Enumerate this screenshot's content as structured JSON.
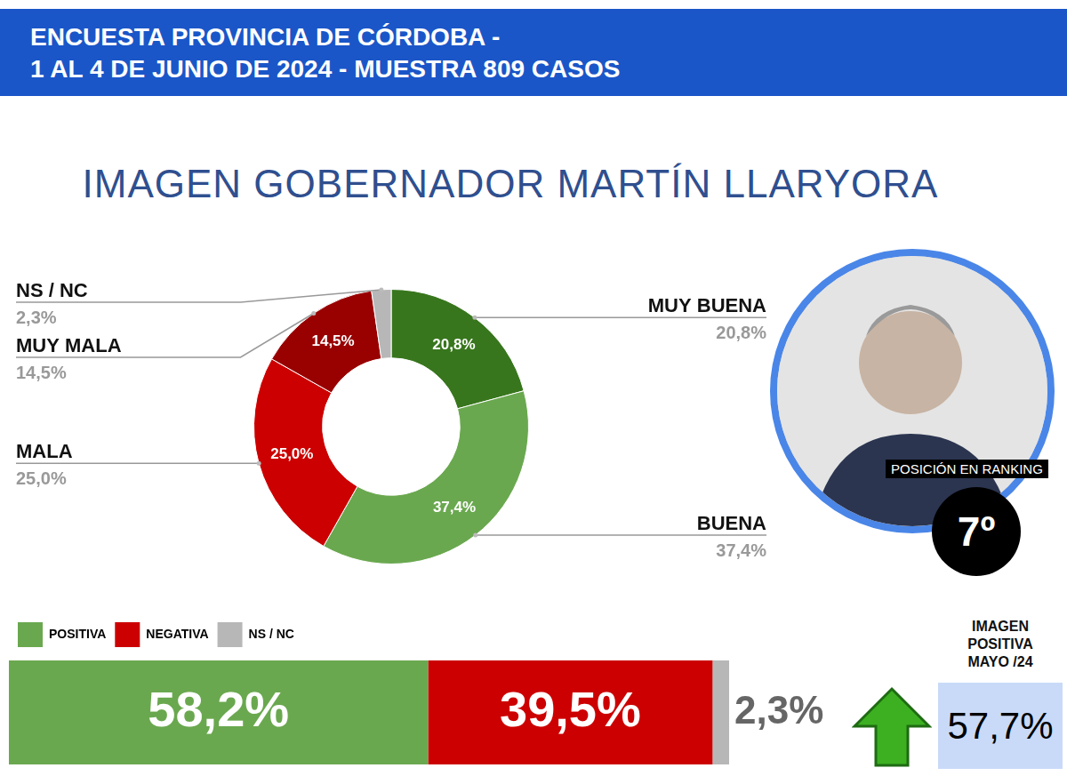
{
  "header": {
    "lines": [
      "ENCUESTA PROVINCIA DE CÓRDOBA -",
      "1 AL 4 DE JUNIO DE 2024 - MUESTRA 809 CASOS"
    ]
  },
  "chart_data": [
    {
      "type": "doughnut",
      "title": "IMAGEN GOBERNADOR  MARTÍN LLARYORA",
      "categories": [
        "MUY BUENA",
        "BUENA",
        "MALA",
        "MUY MALA",
        "NS / NC"
      ],
      "values": [
        20.8,
        37.4,
        25.0,
        14.5,
        2.3
      ],
      "value_labels": [
        "20,8%",
        "37,4%",
        "25,0%",
        "14,5%",
        "2,3%"
      ],
      "colors": [
        "#38761d",
        "#6aa84f",
        "#cc0000",
        "#990000",
        "#b7b7b7"
      ],
      "data_labels": true
    },
    {
      "type": "bar",
      "orientation": "horizontal",
      "stacked": true,
      "legend": "top",
      "categories": [
        null
      ],
      "xlim": [
        0,
        100
      ],
      "tick_labels": false,
      "grid": false,
      "data_labels": true,
      "series": [
        {
          "name": "POSITIVA",
          "color": "#6aa84f",
          "values": [
            58.2
          ],
          "value_labels": [
            "58,2%"
          ]
        },
        {
          "name": "NEGATIVA",
          "color": "#cc0000",
          "values": [
            39.5
          ],
          "value_labels": [
            "39,5%"
          ]
        },
        {
          "name": "NS / NC",
          "color": "#b7b7b7",
          "values": [
            2.3
          ],
          "value_labels": [
            "2,3%"
          ]
        }
      ]
    }
  ],
  "profile": {
    "ranking_label": "POSICIÓN EN RANKING",
    "ranking": "7º"
  },
  "previous": {
    "label": "IMAGEN POSITIVA MAYO /24",
    "value_label": "57,7%"
  }
}
